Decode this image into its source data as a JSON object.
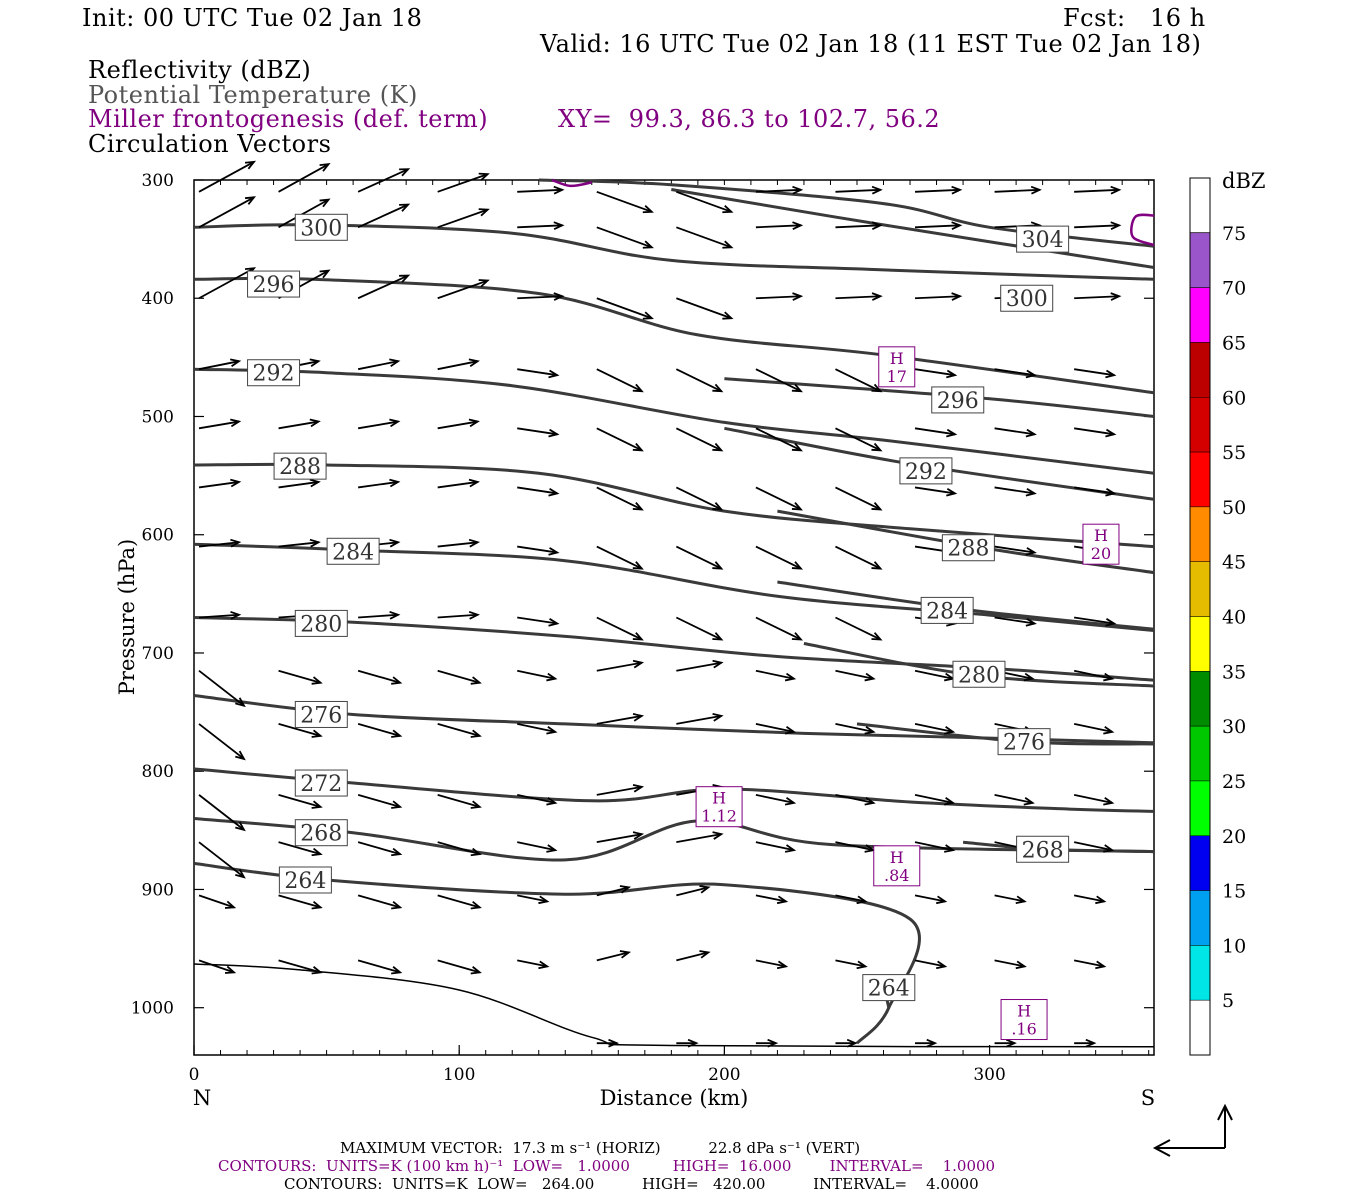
{
  "header": {
    "init": "Init: 00 UTC Tue 02 Jan 18",
    "fcst": "Fcst:   16 h",
    "valid": "Valid: 16 UTC Tue 02 Jan 18 (11 EST Tue 02 Jan 18)",
    "fields": [
      {
        "label": "Reflectivity (dBZ)",
        "color": "#000000"
      },
      {
        "label": "Potential Temperature (K)",
        "color": "#555555"
      },
      {
        "label": "Miller frontogenesis (def. term)",
        "color": "#800080"
      },
      {
        "label": "Circulation Vectors",
        "color": "#000000"
      }
    ],
    "xy": "XY=  99.3, 86.3 to 102.7, 56.2"
  },
  "footer": {
    "line1": "MAXIMUM VECTOR:  17.3 m s⁻¹ (HORIZ)          22.8 dPa s⁻¹ (VERT)",
    "line2": "CONTOURS:  UNITS=K (100 km h)⁻¹  LOW=   1.0000         HIGH=  16.000        INTERVAL=    1.0000",
    "line3": "CONTOURS:  UNITS=K  LOW=   264.00          HIGH=   420.00          INTERVAL=    4.0000"
  },
  "chart_data": {
    "type": "contour",
    "xlabel": "Distance (km)",
    "ylabel": "Pressure (hPa)",
    "xlim": [
      0,
      362
    ],
    "ylim": [
      1040,
      300
    ],
    "xticks": [
      "0",
      "100",
      "200",
      "300"
    ],
    "yticks": [
      "300",
      "400",
      "500",
      "600",
      "700",
      "800",
      "900",
      "1000"
    ],
    "x_endpoints": {
      "left": "N",
      "right": "S"
    },
    "theta_contours": [
      {
        "label": "300",
        "points": [
          [
            0,
            340
          ],
          [
            45,
            338
          ],
          [
            120,
            345
          ],
          [
            180,
            368
          ],
          [
            260,
            376
          ],
          [
            362,
            384
          ]
        ],
        "label_at": [
          48,
          340
        ]
      },
      {
        "label": "304",
        "points": [
          [
            130,
            300
          ],
          [
            180,
            304
          ],
          [
            260,
            320
          ],
          [
            300,
            340
          ],
          [
            362,
            356
          ]
        ],
        "label_at": [
          320,
          350
        ]
      },
      {
        "label": "296",
        "points": [
          [
            0,
            384
          ],
          [
            45,
            384
          ],
          [
            130,
            396
          ],
          [
            190,
            431
          ],
          [
            260,
            448
          ],
          [
            362,
            480
          ]
        ],
        "label_at": [
          30,
          388
        ]
      },
      {
        "label": "300",
        "points": [
          [
            180,
            308
          ],
          [
            260,
            338
          ],
          [
            362,
            374
          ]
        ],
        "label_at": [
          314,
          400
        ]
      },
      {
        "label": "292",
        "points": [
          [
            0,
            460
          ],
          [
            50,
            463
          ],
          [
            120,
            474
          ],
          [
            200,
            505
          ],
          [
            260,
            520
          ],
          [
            362,
            548
          ]
        ],
        "label_at": [
          30,
          463
        ]
      },
      {
        "label": "296",
        "points": [
          [
            200,
            468
          ],
          [
            300,
            485
          ],
          [
            362,
            500
          ]
        ],
        "label_at": [
          288,
          486
        ]
      },
      {
        "label": "288",
        "points": [
          [
            0,
            541
          ],
          [
            50,
            541
          ],
          [
            130,
            548
          ],
          [
            200,
            580
          ],
          [
            270,
            595
          ],
          [
            362,
            610
          ]
        ],
        "label_at": [
          40,
          542
        ]
      },
      {
        "label": "292",
        "points": [
          [
            200,
            510
          ],
          [
            270,
            540
          ],
          [
            362,
            570
          ]
        ],
        "label_at": [
          276,
          546
        ]
      },
      {
        "label": "284",
        "points": [
          [
            0,
            608
          ],
          [
            60,
            613
          ],
          [
            140,
            622
          ],
          [
            220,
            652
          ],
          [
            300,
            668
          ],
          [
            362,
            681
          ]
        ],
        "label_at": [
          60,
          614
        ]
      },
      {
        "label": "288",
        "points": [
          [
            220,
            580
          ],
          [
            300,
            612
          ],
          [
            362,
            632
          ]
        ],
        "label_at": [
          292,
          611
        ]
      },
      {
        "label": "280",
        "points": [
          [
            0,
            670
          ],
          [
            60,
            674
          ],
          [
            140,
            686
          ],
          [
            220,
            703
          ],
          [
            300,
            713
          ],
          [
            362,
            723
          ]
        ],
        "label_at": [
          48,
          675
        ]
      },
      {
        "label": "284",
        "points": [
          [
            220,
            640
          ],
          [
            290,
            663
          ],
          [
            362,
            680
          ]
        ],
        "label_at": [
          284,
          664
        ]
      },
      {
        "label": "276",
        "points": [
          [
            0,
            736
          ],
          [
            60,
            752
          ],
          [
            140,
            760
          ],
          [
            230,
            768
          ],
          [
            300,
            772
          ],
          [
            362,
            776
          ]
        ],
        "label_at": [
          48,
          752
        ]
      },
      {
        "label": "280",
        "points": [
          [
            230,
            692
          ],
          [
            295,
            719
          ],
          [
            362,
            728
          ]
        ],
        "label_at": [
          296,
          718
        ]
      },
      {
        "label": "272",
        "points": [
          [
            0,
            798
          ],
          [
            60,
            810
          ],
          [
            150,
            825
          ],
          [
            200,
            815
          ],
          [
            270,
            826
          ],
          [
            330,
            832
          ],
          [
            362,
            834
          ]
        ],
        "label_at": [
          48,
          810
        ]
      },
      {
        "label": "276",
        "points": [
          [
            250,
            760
          ],
          [
            313,
            775
          ],
          [
            362,
            777
          ]
        ],
        "label_at": [
          313,
          775
        ]
      },
      {
        "label": "268",
        "points": [
          [
            0,
            840
          ],
          [
            60,
            852
          ],
          [
            140,
            875
          ],
          [
            190,
            842
          ],
          [
            240,
            862
          ],
          [
            362,
            868
          ]
        ],
        "label_at": [
          48,
          852
        ]
      },
      {
        "label": "268",
        "points": [
          [
            290,
            860
          ],
          [
            320,
            866
          ],
          [
            362,
            868
          ]
        ],
        "label_at": [
          320,
          866
        ]
      },
      {
        "label": "264",
        "points": [
          [
            0,
            878
          ],
          [
            50,
            892
          ],
          [
            140,
            904
          ],
          [
            200,
            896
          ],
          [
            270,
            925
          ],
          [
            262,
            1000
          ],
          [
            250,
            1030
          ]
        ],
        "label_at": [
          42,
          892
        ]
      },
      {
        "label": "264",
        "points": [
          [
            260,
            980
          ],
          [
            262,
            1000
          ]
        ],
        "label_at": [
          262,
          983
        ]
      }
    ],
    "frontogenesis_maxima": [
      {
        "label": "H",
        "value": "17",
        "at": [
          265,
          458
        ]
      },
      {
        "label": "H",
        "value": "20",
        "at": [
          342,
          608
        ]
      },
      {
        "label": "H",
        "value": "1.12",
        "at": [
          198,
          830
        ]
      },
      {
        "label": "H",
        "value": ".84",
        "at": [
          265,
          880
        ]
      },
      {
        "label": "H",
        "value": ".16",
        "at": [
          313,
          1010
        ]
      }
    ],
    "reflectivity_scale": {
      "unit": "dBZ",
      "levels": [
        "5",
        "10",
        "15",
        "20",
        "25",
        "30",
        "35",
        "40",
        "45",
        "50",
        "55",
        "60",
        "65",
        "70",
        "75"
      ],
      "colors": [
        "#ffffff",
        "#00e5e5",
        "#00a0f0",
        "#0000f0",
        "#00ff00",
        "#00c800",
        "#008c00",
        "#ffff00",
        "#e6bc00",
        "#ff8c00",
        "#ff0000",
        "#d40000",
        "#bc0000",
        "#ff00ff",
        "#9955c9"
      ]
    },
    "vector_rows_hpa": [
      310,
      340,
      400,
      460,
      510,
      560,
      610,
      670,
      715,
      760,
      820,
      860,
      905,
      960,
      1030
    ],
    "vector_cols_km": [
      0,
      30,
      60,
      90,
      120,
      150,
      180,
      210,
      240,
      270,
      300,
      330
    ]
  }
}
